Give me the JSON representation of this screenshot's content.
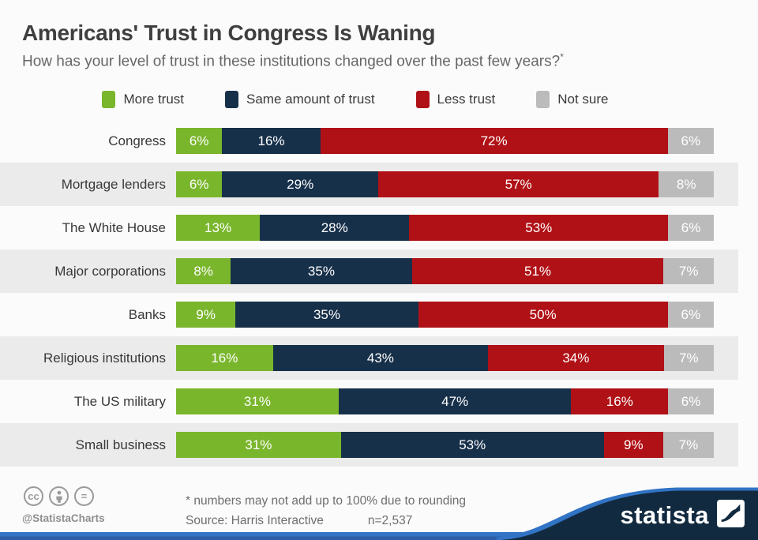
{
  "title": "Americans' Trust in Congress Is Waning",
  "subtitle": "How has your level of trust in these institutions changed over the past few years?",
  "subtitle_marker": "*",
  "chart_data": {
    "type": "bar",
    "orientation": "horizontal-stacked",
    "value_suffix": "%",
    "categories": [
      "Congress",
      "Mortgage lenders",
      "The White House",
      "Major corporations",
      "Banks",
      "Religious institutions",
      "The US military",
      "Small business"
    ],
    "series": [
      {
        "name": "More trust",
        "color": "#7ab62c",
        "values": [
          6,
          6,
          13,
          8,
          9,
          16,
          31,
          31
        ]
      },
      {
        "name": "Same amount of trust",
        "color": "#17304a",
        "values": [
          16,
          29,
          28,
          35,
          35,
          43,
          47,
          53
        ]
      },
      {
        "name": "Less trust",
        "color": "#b01116",
        "values": [
          72,
          57,
          53,
          51,
          50,
          34,
          16,
          9
        ]
      },
      {
        "name": "Not sure",
        "color": "#bbbbbb",
        "values": [
          6,
          8,
          6,
          7,
          6,
          7,
          6,
          7
        ]
      }
    ],
    "legend_position": "top",
    "band_color": "#ebebeb",
    "xlim": [
      0,
      100
    ]
  },
  "footer": {
    "license_icons": [
      "cc",
      "attribution",
      "no-derivatives"
    ],
    "cc_text": "cc",
    "nd_text": "=",
    "handle": "@StatistaCharts",
    "footnote": "* numbers may not add up to 100% due to rounding",
    "source": "Source: Harris Interactive",
    "sample": "n=2,537",
    "brand": "statista",
    "brand_navy": "#122a40",
    "brand_blue": "#3173c4"
  }
}
